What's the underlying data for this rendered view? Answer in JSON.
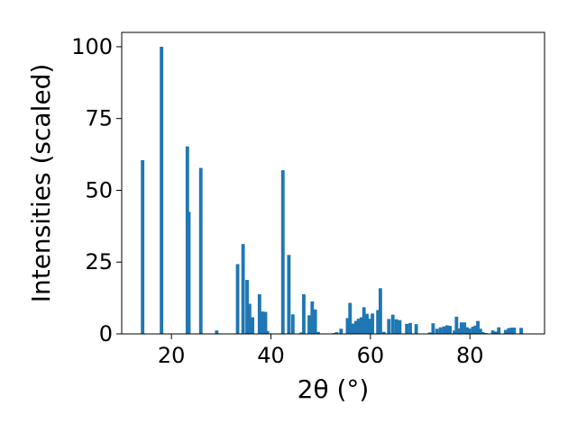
{
  "chart_data": {
    "type": "bar",
    "xlabel": "2θ (°)",
    "ylabel": "Intensities (scaled)",
    "xlim": [
      10,
      95
    ],
    "ylim": [
      0,
      105
    ],
    "xticks": [
      20,
      40,
      60,
      80
    ],
    "yticks": [
      0,
      25,
      50,
      75,
      100
    ],
    "bar_width": 0.7,
    "grid": false,
    "color": "#1f77b4",
    "x": [
      14.2,
      18.0,
      23.2,
      23.5,
      25.9,
      29.1,
      33.3,
      34.4,
      35.2,
      35.7,
      36.3,
      37.7,
      38.2,
      38.9,
      39.3,
      42.4,
      43.6,
      44.4,
      46.1,
      46.6,
      47.7,
      48.3,
      48.9,
      49.5,
      52.7,
      53.2,
      54.1,
      55.4,
      55.9,
      56.5,
      57.1,
      57.6,
      58.2,
      58.7,
      59.3,
      59.8,
      60.4,
      61.5,
      62.0,
      62.7,
      63.7,
      64.5,
      65.2,
      65.9,
      67.3,
      68.0,
      69.2,
      71.9,
      72.6,
      73.4,
      74.1,
      74.8,
      75.4,
      76.0,
      76.9,
      77.3,
      77.8,
      78.3,
      78.9,
      79.4,
      79.9,
      80.6,
      81.1,
      81.6,
      82.1,
      82.6,
      83.2,
      84.6,
      85.2,
      85.8,
      87.2,
      87.8,
      88.4,
      88.9,
      90.3
    ],
    "values": [
      60.5,
      100.0,
      65.3,
      42.5,
      57.8,
      1.2,
      24.3,
      31.3,
      18.8,
      10.5,
      5.8,
      13.8,
      7.8,
      7.7,
      1.0,
      57.0,
      27.5,
      6.8,
      0.5,
      13.8,
      6.5,
      11.3,
      8.5,
      0.7,
      0.3,
      0.6,
      1.8,
      5.5,
      10.8,
      3.6,
      4.5,
      5.3,
      5.8,
      9.3,
      7.0,
      5.3,
      7.1,
      8.3,
      15.9,
      0.7,
      5.2,
      6.7,
      5.1,
      4.8,
      3.5,
      3.8,
      3.4,
      0.5,
      3.7,
      1.8,
      2.3,
      2.6,
      3.0,
      2.8,
      1.2,
      6.0,
      1.9,
      4.0,
      4.0,
      2.3,
      1.9,
      2.5,
      2.9,
      4.5,
      1.8,
      0.6,
      0.3,
      1.2,
      0.8,
      2.3,
      1.4,
      2.0,
      2.2,
      2.2,
      2.1
    ]
  }
}
